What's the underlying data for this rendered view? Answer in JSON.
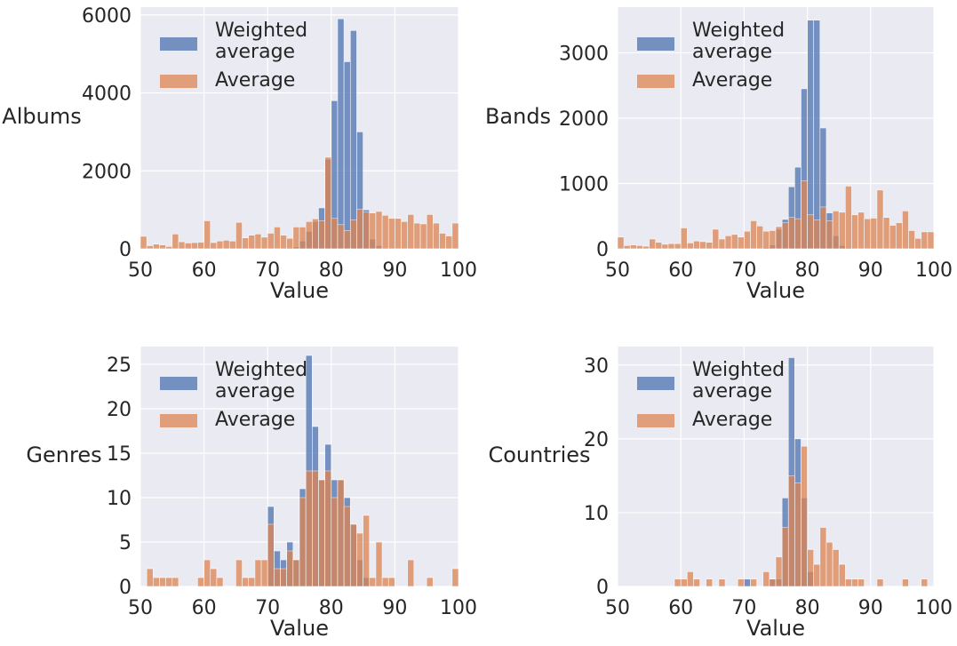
{
  "chart_data": [
    {
      "type": "bar",
      "ylabel": "Albums",
      "xlabel": "Value",
      "xlim": [
        50,
        100
      ],
      "ylim": [
        0,
        6200
      ],
      "xticks": [
        "50",
        "60",
        "70",
        "80",
        "90",
        "100"
      ],
      "yticks": [
        "0",
        "2000",
        "4000",
        "6000"
      ],
      "ytick_values": [
        0,
        2000,
        4000,
        6000
      ],
      "grid": true,
      "legend_position": "top-left",
      "bin_start": 50,
      "bin_width": 1.0,
      "series": [
        {
          "name": "Weighted average",
          "color": "#4c72b0",
          "values": [
            0,
            0,
            0,
            0,
            0,
            0,
            0,
            0,
            0,
            0,
            0,
            0,
            0,
            0,
            0,
            0,
            0,
            0,
            0,
            0,
            0,
            0,
            0,
            20,
            50,
            200,
            450,
            700,
            1050,
            2300,
            3800,
            5900,
            4800,
            5600,
            3000,
            1000,
            250,
            80,
            20,
            5,
            0,
            0,
            0,
            0,
            0,
            0,
            0,
            0,
            0,
            0
          ]
        },
        {
          "name": "Average",
          "color": "#dd8452",
          "values": [
            320,
            80,
            120,
            100,
            60,
            380,
            180,
            150,
            160,
            170,
            720,
            160,
            200,
            220,
            200,
            680,
            280,
            350,
            380,
            300,
            400,
            560,
            350,
            270,
            560,
            560,
            700,
            770,
            720,
            2350,
            780,
            620,
            470,
            740,
            1020,
            940,
            920,
            960,
            860,
            780,
            780,
            700,
            880,
            660,
            640,
            880,
            660,
            400,
            330,
            660
          ]
        }
      ],
      "legend": [
        "Weighted\naverage",
        "Average"
      ]
    },
    {
      "type": "bar",
      "ylabel": "Bands",
      "xlabel": "Value",
      "xlim": [
        50,
        100
      ],
      "ylim": [
        0,
        3700
      ],
      "xticks": [
        "50",
        "60",
        "70",
        "80",
        "90",
        "100"
      ],
      "yticks": [
        "0",
        "1000",
        "2000",
        "3000"
      ],
      "ytick_values": [
        0,
        1000,
        2000,
        3000
      ],
      "grid": true,
      "legend_position": "top-left",
      "bin_start": 50,
      "bin_width": 1.0,
      "series": [
        {
          "name": "Weighted average",
          "color": "#4c72b0",
          "values": [
            0,
            0,
            0,
            0,
            0,
            0,
            0,
            0,
            0,
            0,
            0,
            0,
            0,
            0,
            0,
            0,
            0,
            0,
            0,
            0,
            0,
            0,
            0,
            20,
            60,
            300,
            450,
            950,
            1250,
            2450,
            3500,
            3500,
            1850,
            550,
            200,
            50,
            15,
            0,
            0,
            0,
            0,
            0,
            0,
            0,
            0,
            0,
            0,
            0,
            0,
            0
          ]
        },
        {
          "name": "Average",
          "color": "#dd8452",
          "values": [
            180,
            50,
            60,
            50,
            40,
            150,
            100,
            70,
            80,
            80,
            320,
            90,
            120,
            110,
            100,
            300,
            150,
            200,
            220,
            180,
            270,
            430,
            350,
            270,
            280,
            340,
            400,
            480,
            460,
            1040,
            520,
            440,
            640,
            430,
            580,
            560,
            960,
            520,
            560,
            460,
            470,
            900,
            480,
            360,
            400,
            580,
            280,
            160,
            260,
            260
          ]
        }
      ],
      "legend": [
        "Weighted\naverage",
        "Average"
      ]
    },
    {
      "type": "bar",
      "ylabel": "Genres",
      "xlabel": "Value",
      "xlim": [
        50,
        100
      ],
      "ylim": [
        0,
        27
      ],
      "xticks": [
        "50",
        "60",
        "70",
        "80",
        "90",
        "100"
      ],
      "yticks": [
        "0",
        "5",
        "10",
        "15",
        "20",
        "25"
      ],
      "ytick_values": [
        0,
        5,
        10,
        15,
        20,
        25
      ],
      "grid": true,
      "legend_position": "top-left",
      "bin_start": 50,
      "bin_width": 1.0,
      "series": [
        {
          "name": "Weighted average",
          "color": "#4c72b0",
          "values": [
            0,
            0,
            0,
            0,
            0,
            0,
            0,
            0,
            0,
            0,
            0,
            0,
            0,
            0,
            0,
            0,
            0,
            0,
            0,
            0,
            9,
            4,
            3,
            5,
            3,
            11,
            26,
            18,
            12,
            16,
            12,
            12,
            10,
            7,
            3,
            1,
            0,
            0,
            0,
            0,
            0,
            0,
            0,
            0,
            0,
            0,
            0,
            0,
            0,
            0
          ]
        },
        {
          "name": "Average",
          "color": "#dd8452",
          "values": [
            0,
            2,
            1,
            1,
            1,
            1,
            0,
            0,
            0,
            1,
            3,
            2,
            1,
            0,
            0,
            3,
            1,
            1,
            3,
            3,
            7,
            2,
            2,
            4,
            3,
            10,
            13,
            13,
            12,
            13,
            10,
            12,
            9,
            7,
            6,
            8,
            1,
            5,
            1,
            1,
            0,
            0,
            3,
            0,
            0,
            1,
            0,
            0,
            0,
            2
          ]
        }
      ],
      "legend": [
        "Weighted\naverage",
        "Average"
      ]
    },
    {
      "type": "bar",
      "ylabel": "Countries",
      "xlabel": "Value",
      "xlim": [
        50,
        100
      ],
      "ylim": [
        0,
        32.5
      ],
      "xticks": [
        "50",
        "60",
        "70",
        "80",
        "90",
        "100"
      ],
      "yticks": [
        "0",
        "10",
        "20",
        "30"
      ],
      "ytick_values": [
        0,
        10,
        20,
        30
      ],
      "grid": true,
      "legend_position": "top-left",
      "bin_start": 50,
      "bin_width": 1.0,
      "series": [
        {
          "name": "Weighted average",
          "color": "#4c72b0",
          "values": [
            0,
            0,
            0,
            0,
            0,
            0,
            0,
            0,
            0,
            0,
            0,
            0,
            0,
            0,
            0,
            0,
            0,
            0,
            0,
            0,
            1,
            0,
            0,
            0,
            1,
            1,
            12,
            31,
            20,
            12,
            2,
            0,
            0,
            0,
            0,
            0,
            0,
            0,
            0,
            0,
            0,
            0,
            0,
            0,
            0,
            0,
            0,
            0,
            0,
            0
          ]
        },
        {
          "name": "Average",
          "color": "#dd8452",
          "values": [
            0,
            0,
            0,
            0,
            0,
            0,
            0,
            0,
            0,
            1,
            1,
            2,
            1,
            0,
            1,
            0,
            1,
            0,
            0,
            1,
            0,
            1,
            0,
            2,
            1,
            4,
            8,
            15,
            14,
            19,
            5,
            3,
            8,
            6,
            5,
            3,
            1,
            1,
            1,
            0,
            0,
            1,
            0,
            0,
            0,
            1,
            0,
            0,
            1,
            0
          ]
        }
      ],
      "legend": [
        "Weighted\naverage",
        "Average"
      ]
    }
  ]
}
